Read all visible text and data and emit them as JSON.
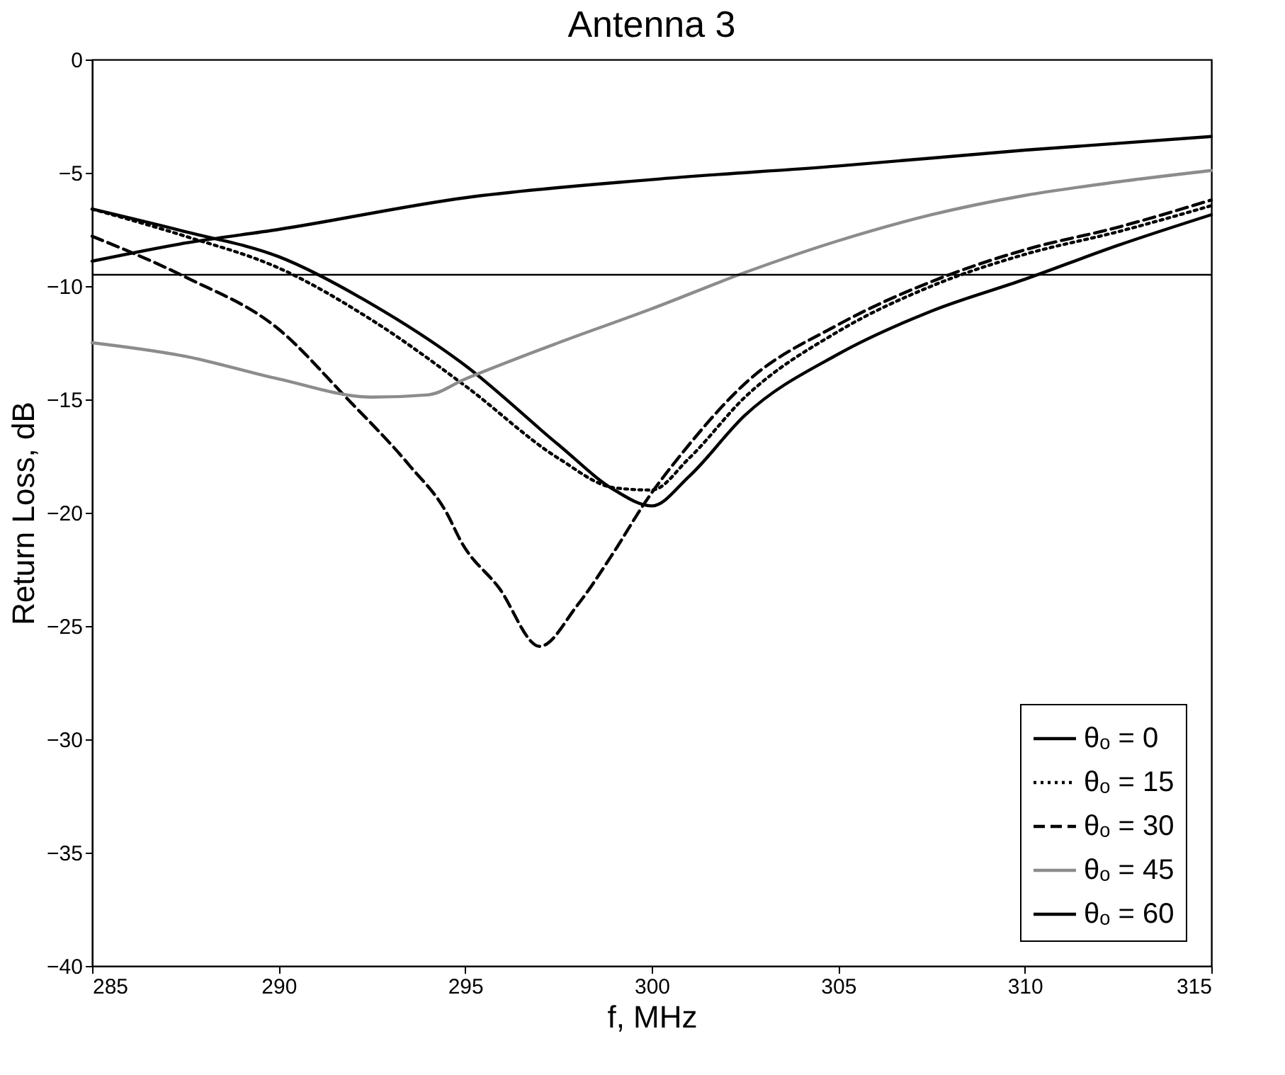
{
  "chart_data": {
    "type": "line",
    "title": "Antenna 3",
    "xlabel": "f, MHz",
    "ylabel": "Return Loss, dB",
    "xlim": [
      285,
      315
    ],
    "xticks": [
      285,
      290,
      295,
      300,
      305,
      310,
      315
    ],
    "ylim": [
      -40,
      0
    ],
    "yticks": [
      -40,
      -35,
      -30,
      -25,
      -20,
      -15,
      -10,
      -5,
      0
    ],
    "grid": false,
    "legend": "bottom right",
    "ref_lines": [
      {
        "axis": "y",
        "value": -9.5,
        "color": "#000000",
        "line_style": "solid"
      }
    ],
    "series": [
      {
        "name": "θₒ = 0",
        "color": "#000000",
        "line_style": "solid",
        "x": [
          285,
          287.5,
          290,
          292.5,
          295,
          297.5,
          299,
          300,
          301,
          302.5,
          305,
          307.5,
          310,
          312.5,
          315
        ],
        "values": [
          -6.6,
          -7.6,
          -8.7,
          -10.8,
          -13.5,
          -17.0,
          -19.0,
          -19.7,
          -18.4,
          -15.7,
          -13.0,
          -11.1,
          -9.7,
          -8.2,
          -6.85
        ]
      },
      {
        "name": "θₒ = 15",
        "color": "#000000",
        "line_style": "dotted",
        "x": [
          285,
          287.5,
          290,
          292.5,
          295,
          297.5,
          299,
          300,
          301,
          302.5,
          305,
          307.5,
          310,
          312.5,
          315
        ],
        "values": [
          -6.6,
          -7.8,
          -9.2,
          -11.5,
          -14.4,
          -17.6,
          -18.9,
          -19.0,
          -17.6,
          -14.9,
          -12.0,
          -10.0,
          -8.6,
          -7.6,
          -6.45
        ]
      },
      {
        "name": "θₒ = 30",
        "color": "#000000",
        "line_style": "dashed",
        "x": [
          285,
          287.5,
          290,
          291.8,
          293.5,
          294.5,
          294.9,
          295.9,
          297.0,
          298.0,
          299.0,
          299.8,
          301,
          302.5,
          305,
          307.5,
          310,
          312.5,
          315
        ],
        "values": [
          -7.8,
          -9.6,
          -11.9,
          -14.9,
          -17.9,
          -20.0,
          -21.3,
          -23.3,
          -25.9,
          -24.1,
          -21.7,
          -19.6,
          -17.0,
          -14.3,
          -11.7,
          -9.8,
          -8.4,
          -7.4,
          -6.2
        ]
      },
      {
        "name": "θₒ = 45",
        "color": "#8c8c8c",
        "line_style": "solid",
        "x": [
          285,
          287.5,
          290,
          292.5,
          294,
          295,
          297.5,
          300,
          302.5,
          305,
          307.5,
          310,
          312.5,
          315
        ],
        "values": [
          -12.5,
          -13.1,
          -14.1,
          -14.9,
          -14.8,
          -14.1,
          -12.5,
          -11.0,
          -9.4,
          -8.0,
          -6.85,
          -6.0,
          -5.4,
          -4.9
        ]
      },
      {
        "name": "θₒ = 60",
        "color": "#000000",
        "line_style": "solid",
        "x": [
          285,
          287.5,
          290,
          295,
          300,
          305,
          310,
          315
        ],
        "values": [
          -8.9,
          -8.1,
          -7.5,
          -6.1,
          -5.3,
          -4.7,
          -4.0,
          -3.4
        ]
      }
    ]
  }
}
